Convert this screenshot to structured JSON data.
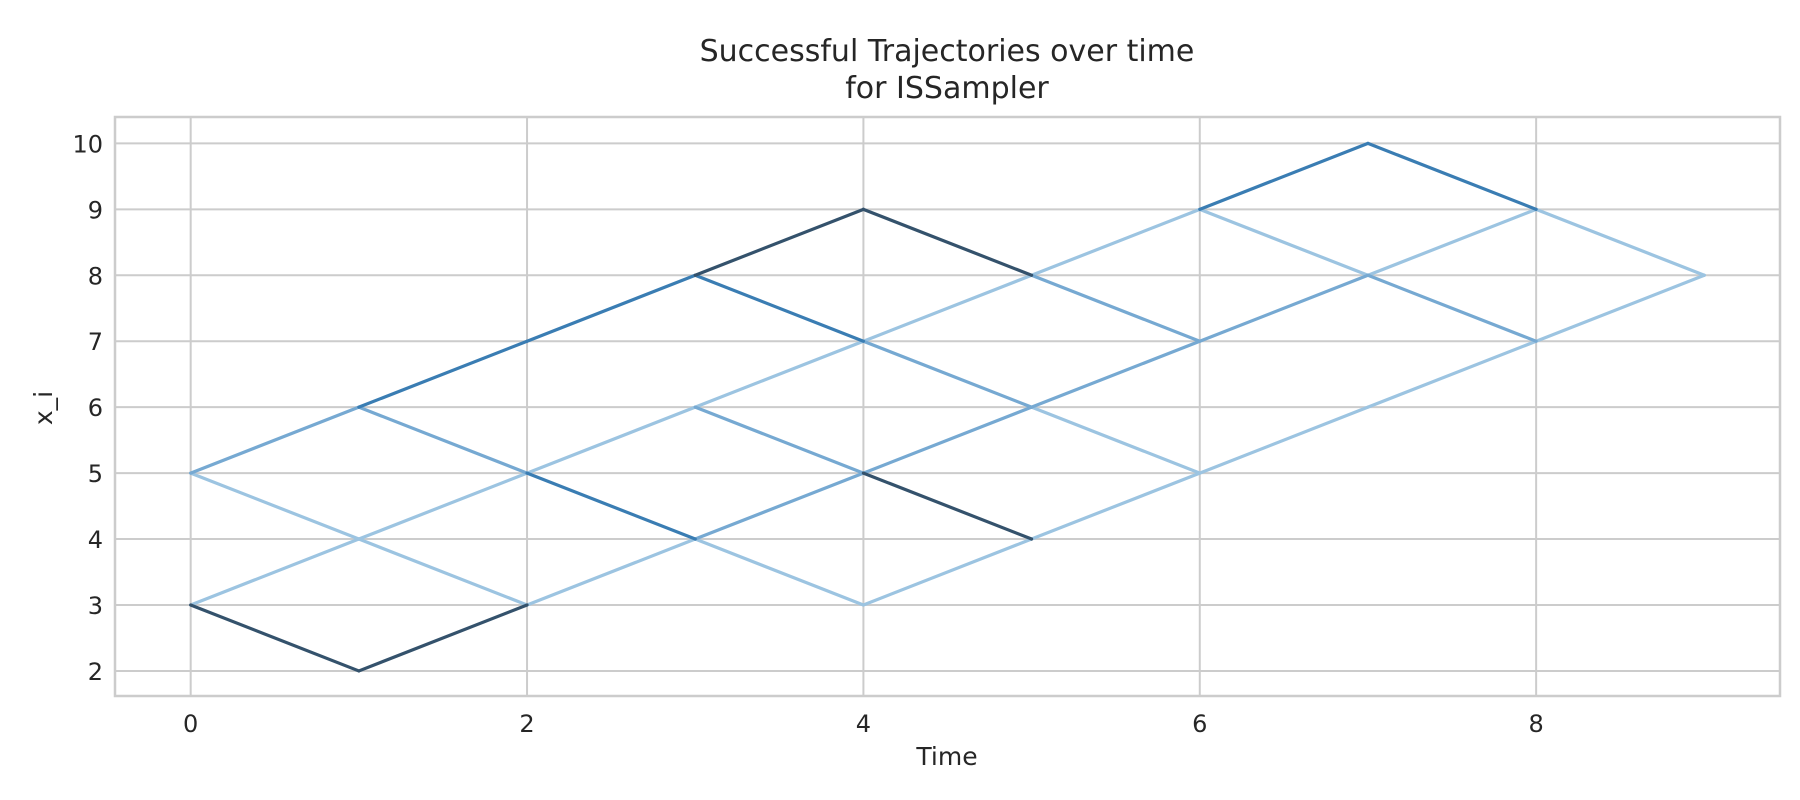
{
  "chart_data": {
    "type": "line",
    "title": "Successful Trajectories over time",
    "subtitle": "for ISSampler",
    "xlabel": "Time",
    "ylabel": "x_i",
    "xlim": [
      -0.45,
      9.45
    ],
    "ylim": [
      1.62,
      10.4
    ],
    "xticks": [
      0,
      2,
      4,
      6,
      8
    ],
    "yticks": [
      2,
      3,
      4,
      5,
      6,
      7,
      8,
      9,
      10
    ],
    "grid": true,
    "legend": "none",
    "palette": [
      "#34526c",
      "#3a7db3",
      "#76a9d2",
      "#9cc4e1"
    ],
    "segments": [
      {
        "x": [
          0,
          1
        ],
        "y": [
          3,
          2
        ],
        "shade": 0
      },
      {
        "x": [
          1,
          2
        ],
        "y": [
          2,
          3
        ],
        "shade": 0
      },
      {
        "x": [
          0,
          1
        ],
        "y": [
          3,
          4
        ],
        "shade": 3
      },
      {
        "x": [
          1,
          2
        ],
        "y": [
          4,
          3
        ],
        "shade": 3
      },
      {
        "x": [
          2,
          3
        ],
        "y": [
          3,
          4
        ],
        "shade": 3
      },
      {
        "x": [
          0,
          1
        ],
        "y": [
          5,
          4
        ],
        "shade": 3
      },
      {
        "x": [
          1,
          2
        ],
        "y": [
          4,
          5
        ],
        "shade": 3
      },
      {
        "x": [
          0,
          1
        ],
        "y": [
          5,
          6
        ],
        "shade": 2
      },
      {
        "x": [
          1,
          2
        ],
        "y": [
          6,
          5
        ],
        "shade": 2
      },
      {
        "x": [
          1,
          2
        ],
        "y": [
          6,
          7
        ],
        "shade": 1
      },
      {
        "x": [
          2,
          3
        ],
        "y": [
          7,
          8
        ],
        "shade": 1
      },
      {
        "x": [
          3,
          4
        ],
        "y": [
          8,
          9
        ],
        "shade": 0
      },
      {
        "x": [
          4,
          5
        ],
        "y": [
          9,
          8
        ],
        "shade": 0
      },
      {
        "x": [
          3,
          4
        ],
        "y": [
          8,
          7
        ],
        "shade": 1
      },
      {
        "x": [
          2,
          3
        ],
        "y": [
          5,
          4
        ],
        "shade": 1
      },
      {
        "x": [
          2,
          3
        ],
        "y": [
          5,
          6
        ],
        "shade": 3
      },
      {
        "x": [
          3,
          4
        ],
        "y": [
          6,
          7
        ],
        "shade": 3
      },
      {
        "x": [
          4,
          5
        ],
        "y": [
          7,
          8
        ],
        "shade": 3
      },
      {
        "x": [
          3,
          4
        ],
        "y": [
          6,
          5
        ],
        "shade": 2
      },
      {
        "x": [
          3,
          4
        ],
        "y": [
          4,
          5
        ],
        "shade": 2
      },
      {
        "x": [
          3,
          4
        ],
        "y": [
          4,
          3
        ],
        "shade": 3
      },
      {
        "x": [
          4,
          5
        ],
        "y": [
          3,
          4
        ],
        "shade": 3
      },
      {
        "x": [
          4,
          5
        ],
        "y": [
          5,
          4
        ],
        "shade": 0
      },
      {
        "x": [
          4,
          5
        ],
        "y": [
          5,
          6
        ],
        "shade": 2
      },
      {
        "x": [
          4,
          5
        ],
        "y": [
          7,
          6
        ],
        "shade": 2
      },
      {
        "x": [
          5,
          6
        ],
        "y": [
          6,
          7
        ],
        "shade": 2
      },
      {
        "x": [
          5,
          6
        ],
        "y": [
          6,
          5
        ],
        "shade": 3
      },
      {
        "x": [
          5,
          6
        ],
        "y": [
          4,
          5
        ],
        "shade": 3
      },
      {
        "x": [
          5,
          6
        ],
        "y": [
          8,
          9
        ],
        "shade": 3
      },
      {
        "x": [
          5,
          6
        ],
        "y": [
          8,
          7
        ],
        "shade": 2
      },
      {
        "x": [
          6,
          7
        ],
        "y": [
          5,
          6
        ],
        "shade": 3
      },
      {
        "x": [
          7,
          8
        ],
        "y": [
          6,
          7
        ],
        "shade": 3
      },
      {
        "x": [
          6,
          7
        ],
        "y": [
          7,
          8
        ],
        "shade": 2
      },
      {
        "x": [
          6,
          7
        ],
        "y": [
          9,
          8
        ],
        "shade": 3
      },
      {
        "x": [
          6,
          7
        ],
        "y": [
          9,
          10
        ],
        "shade": 1
      },
      {
        "x": [
          7,
          8
        ],
        "y": [
          10,
          9
        ],
        "shade": 1
      },
      {
        "x": [
          7,
          8
        ],
        "y": [
          8,
          9
        ],
        "shade": 3
      },
      {
        "x": [
          7,
          8
        ],
        "y": [
          8,
          7
        ],
        "shade": 2
      },
      {
        "x": [
          8,
          9
        ],
        "y": [
          9,
          8
        ],
        "shade": 3
      },
      {
        "x": [
          8,
          9
        ],
        "y": [
          7,
          8
        ],
        "shade": 3
      }
    ]
  }
}
